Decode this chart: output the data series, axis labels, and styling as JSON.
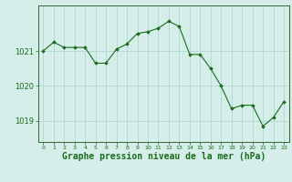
{
  "x": [
    0,
    1,
    2,
    3,
    4,
    5,
    6,
    7,
    8,
    9,
    10,
    11,
    12,
    13,
    14,
    15,
    16,
    17,
    18,
    19,
    20,
    21,
    22,
    23
  ],
  "y": [
    1021.0,
    1021.25,
    1021.1,
    1021.1,
    1021.1,
    1020.65,
    1020.65,
    1021.05,
    1021.2,
    1021.5,
    1021.55,
    1021.65,
    1021.85,
    1021.7,
    1020.9,
    1020.9,
    1020.5,
    1020.0,
    1019.35,
    1019.45,
    1019.45,
    1018.85,
    1019.1,
    1019.55
  ],
  "line_color": "#1a6b1a",
  "marker_color": "#1a6b1a",
  "bg_color": "#d5eeea",
  "grid_color": "#b0d8d0",
  "border_color": "#336633",
  "xlabel": "Graphe pression niveau de la mer (hPa)",
  "xlabel_fontsize": 7,
  "tick_labels": [
    "0",
    "1",
    "2",
    "3",
    "4",
    "5",
    "6",
    "7",
    "8",
    "9",
    "10",
    "11",
    "12",
    "13",
    "14",
    "15",
    "16",
    "17",
    "18",
    "19",
    "20",
    "21",
    "22",
    "23"
  ],
  "yticks": [
    1019,
    1020,
    1021
  ],
  "ylim": [
    1018.4,
    1022.3
  ],
  "xlim": [
    -0.5,
    23.5
  ]
}
